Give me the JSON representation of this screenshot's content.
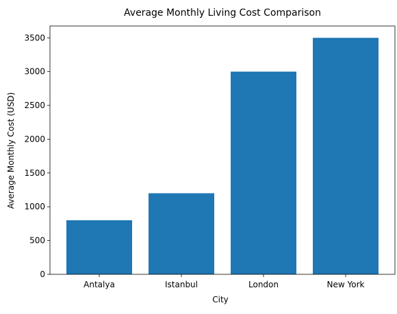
{
  "chart_data": {
    "type": "bar",
    "title": "Average Monthly Living Cost Comparison",
    "xlabel": "City",
    "ylabel": "Average Monthly Cost (USD)",
    "categories": [
      "Antalya",
      "Istanbul",
      "London",
      "New York"
    ],
    "values": [
      800,
      1200,
      3000,
      3500
    ],
    "ylim": [
      0,
      3675
    ],
    "yticks": [
      0,
      500,
      1000,
      1500,
      2000,
      2500,
      3000,
      3500
    ],
    "grid": false,
    "legend": "none",
    "bar_color": "#1f77b4"
  }
}
